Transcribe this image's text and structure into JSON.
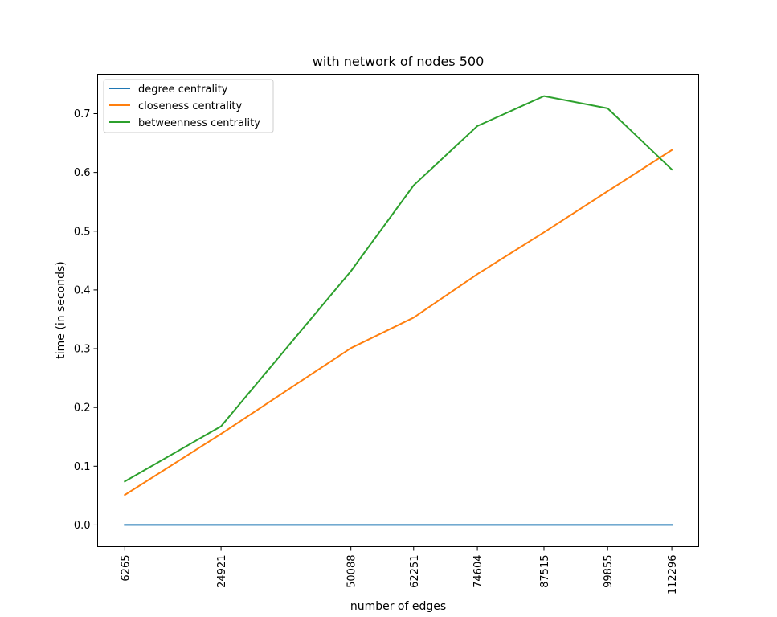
{
  "chart_data": {
    "type": "line",
    "title": "with network of nodes 500",
    "xlabel": "number of edges",
    "ylabel": "time (in seconds)",
    "x": [
      6265,
      24921,
      50088,
      62251,
      74604,
      87515,
      99855,
      112296
    ],
    "x_ticks": [
      "6265",
      "24921",
      "50088",
      "62251",
      "74604",
      "87515",
      "99855",
      "112296"
    ],
    "y_ticks": [
      "0.0",
      "0.1",
      "0.2",
      "0.3",
      "0.4",
      "0.5",
      "0.6",
      "0.7"
    ],
    "xlim": [
      1000,
      117500
    ],
    "ylim": [
      -0.037,
      0.767
    ],
    "grid": false,
    "legend_position": "top-left",
    "series": [
      {
        "name": "degree centrality",
        "color": "#1f77b4",
        "values": [
          0.0,
          0.0,
          0.0,
          0.0,
          0.0,
          0.0,
          0.0,
          0.0
        ]
      },
      {
        "name": "closeness centrality",
        "color": "#ff7f0e",
        "values": [
          0.051,
          0.155,
          0.301,
          0.353,
          0.427,
          0.498,
          0.568,
          0.638
        ]
      },
      {
        "name": "betweenness centrality",
        "color": "#2ca02c",
        "values": [
          0.074,
          0.168,
          0.432,
          0.578,
          0.679,
          0.73,
          0.709,
          0.605
        ]
      }
    ]
  }
}
